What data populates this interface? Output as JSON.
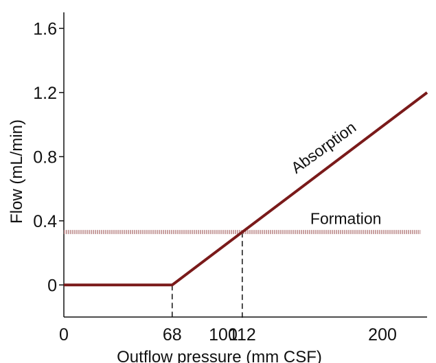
{
  "chart_data": {
    "type": "line",
    "xlabel": "Outflow pressure (mm CSF)",
    "ylabel": "Flow (mL/min)",
    "xlim": [
      0,
      228
    ],
    "ylim": [
      -0.2,
      1.7
    ],
    "x_ticks": [
      0,
      68,
      100,
      112,
      200
    ],
    "x_tick_labels": [
      "0",
      "68",
      "100",
      "112",
      "200"
    ],
    "y_ticks": [
      0,
      0.4,
      0.8,
      1.2,
      1.6
    ],
    "y_tick_labels": [
      "0",
      "0.4",
      "0.8",
      "1.2",
      "1.6"
    ],
    "grid": false,
    "legend": "none",
    "series": [
      {
        "name": "Absorption",
        "x": [
          0,
          68,
          228
        ],
        "y": [
          0,
          0,
          1.2
        ],
        "color": "#7a1a1a"
      },
      {
        "name": "Formation",
        "x": [
          0,
          224
        ],
        "y": [
          0.33,
          0.33
        ],
        "color": "#c8a0a0"
      }
    ],
    "reference_lines": [
      {
        "x": 68,
        "y_to": 0
      },
      {
        "x": 112,
        "y_to": 0.33
      }
    ]
  }
}
